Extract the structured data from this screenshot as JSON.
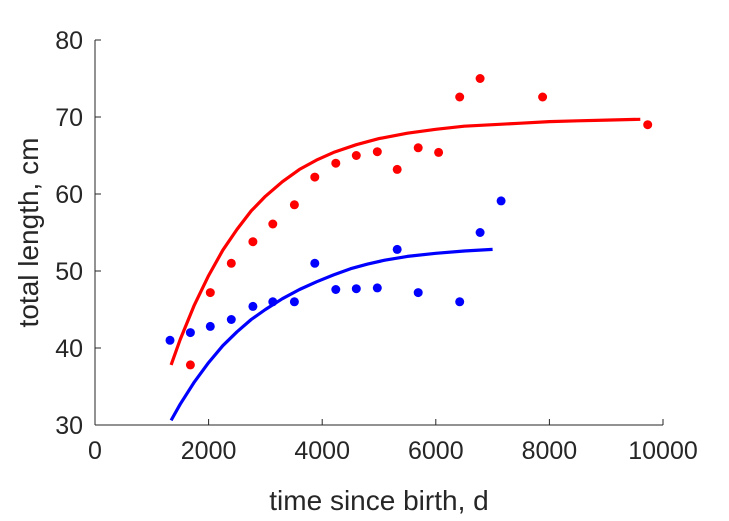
{
  "chart_data": {
    "type": "scatter",
    "xlabel": "time since birth, d",
    "ylabel": "total length, cm",
    "xlim": [
      0,
      10000
    ],
    "ylim": [
      30,
      80
    ],
    "xticks": [
      0,
      2000,
      4000,
      6000,
      8000,
      10000
    ],
    "yticks": [
      30,
      40,
      50,
      60,
      70,
      80
    ],
    "grid": false,
    "series": [
      {
        "color": "#ff0000",
        "points": [
          [
            1680,
            37.8
          ],
          [
            2030,
            47.2
          ],
          [
            2400,
            51.0
          ],
          [
            2780,
            53.8
          ],
          [
            3130,
            56.1
          ],
          [
            3510,
            58.6
          ],
          [
            3870,
            62.2
          ],
          [
            4240,
            64.0
          ],
          [
            4600,
            65.0
          ],
          [
            4970,
            65.5
          ],
          [
            5320,
            63.2
          ],
          [
            5690,
            66.0
          ],
          [
            6050,
            65.4
          ],
          [
            6420,
            72.6
          ],
          [
            6780,
            75.0
          ],
          [
            7880,
            72.6
          ],
          [
            9730,
            69.0
          ]
        ],
        "fit": [
          [
            1340,
            37.8
          ],
          [
            1500,
            41.1
          ],
          [
            1750,
            45.6
          ],
          [
            2000,
            49.4
          ],
          [
            2250,
            52.7
          ],
          [
            2500,
            55.4
          ],
          [
            2750,
            57.8
          ],
          [
            3000,
            59.7
          ],
          [
            3300,
            61.6
          ],
          [
            3600,
            63.2
          ],
          [
            3900,
            64.4
          ],
          [
            4200,
            65.4
          ],
          [
            4600,
            66.4
          ],
          [
            5000,
            67.2
          ],
          [
            5500,
            67.9
          ],
          [
            6000,
            68.4
          ],
          [
            6500,
            68.8
          ],
          [
            7000,
            69.0
          ],
          [
            7500,
            69.2
          ],
          [
            8000,
            69.4
          ],
          [
            8500,
            69.5
          ],
          [
            9000,
            69.6
          ],
          [
            9600,
            69.7
          ]
        ]
      },
      {
        "color": "#0000ff",
        "points": [
          [
            1320,
            41.0
          ],
          [
            1680,
            42.0
          ],
          [
            2030,
            42.8
          ],
          [
            2400,
            43.7
          ],
          [
            2780,
            45.4
          ],
          [
            3130,
            46.0
          ],
          [
            3510,
            46.0
          ],
          [
            3870,
            51.0
          ],
          [
            4240,
            47.6
          ],
          [
            4600,
            47.7
          ],
          [
            4970,
            47.8
          ],
          [
            5320,
            52.8
          ],
          [
            5690,
            47.2
          ],
          [
            6420,
            46.0
          ],
          [
            6780,
            55.0
          ],
          [
            7150,
            59.1
          ]
        ],
        "fit": [
          [
            1340,
            30.6
          ],
          [
            1500,
            32.7
          ],
          [
            1750,
            35.6
          ],
          [
            2000,
            38.1
          ],
          [
            2250,
            40.3
          ],
          [
            2500,
            42.1
          ],
          [
            2750,
            43.7
          ],
          [
            3000,
            45.0
          ],
          [
            3300,
            46.4
          ],
          [
            3600,
            47.6
          ],
          [
            3900,
            48.6
          ],
          [
            4200,
            49.5
          ],
          [
            4500,
            50.3
          ],
          [
            4800,
            50.9
          ],
          [
            5100,
            51.4
          ],
          [
            5500,
            51.9
          ],
          [
            6000,
            52.3
          ],
          [
            6500,
            52.6
          ],
          [
            7000,
            52.8
          ]
        ]
      }
    ]
  }
}
